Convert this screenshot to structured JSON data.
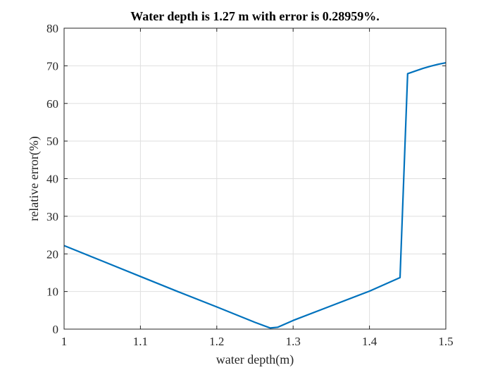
{
  "chart_data": {
    "type": "line",
    "title": "Water depth is 1.27 m with error is 0.28959%.",
    "xlabel": "water depth(m)",
    "ylabel": "relative error(%)",
    "xlim": [
      1,
      1.5
    ],
    "ylim": [
      0,
      80
    ],
    "grid": true,
    "box": true,
    "x_ticks": [
      "1",
      "1.1",
      "1.2",
      "1.3",
      "1.4",
      "1.5"
    ],
    "y_ticks": [
      "0",
      "10",
      "20",
      "30",
      "40",
      "50",
      "60",
      "70",
      "80"
    ],
    "series": [
      {
        "color": "#0072BD",
        "x": [
          1.0,
          1.05,
          1.1,
          1.15,
          1.2,
          1.25,
          1.27,
          1.28,
          1.3,
          1.35,
          1.4,
          1.44,
          1.45,
          1.46,
          1.47,
          1.48,
          1.49,
          1.5
        ],
        "y": [
          22.2,
          18.1,
          14.0,
          9.9,
          5.9,
          1.8,
          0.3,
          0.5,
          2.3,
          6.2,
          10.1,
          13.7,
          67.9,
          68.6,
          69.3,
          69.9,
          70.4,
          70.8
        ]
      }
    ]
  }
}
